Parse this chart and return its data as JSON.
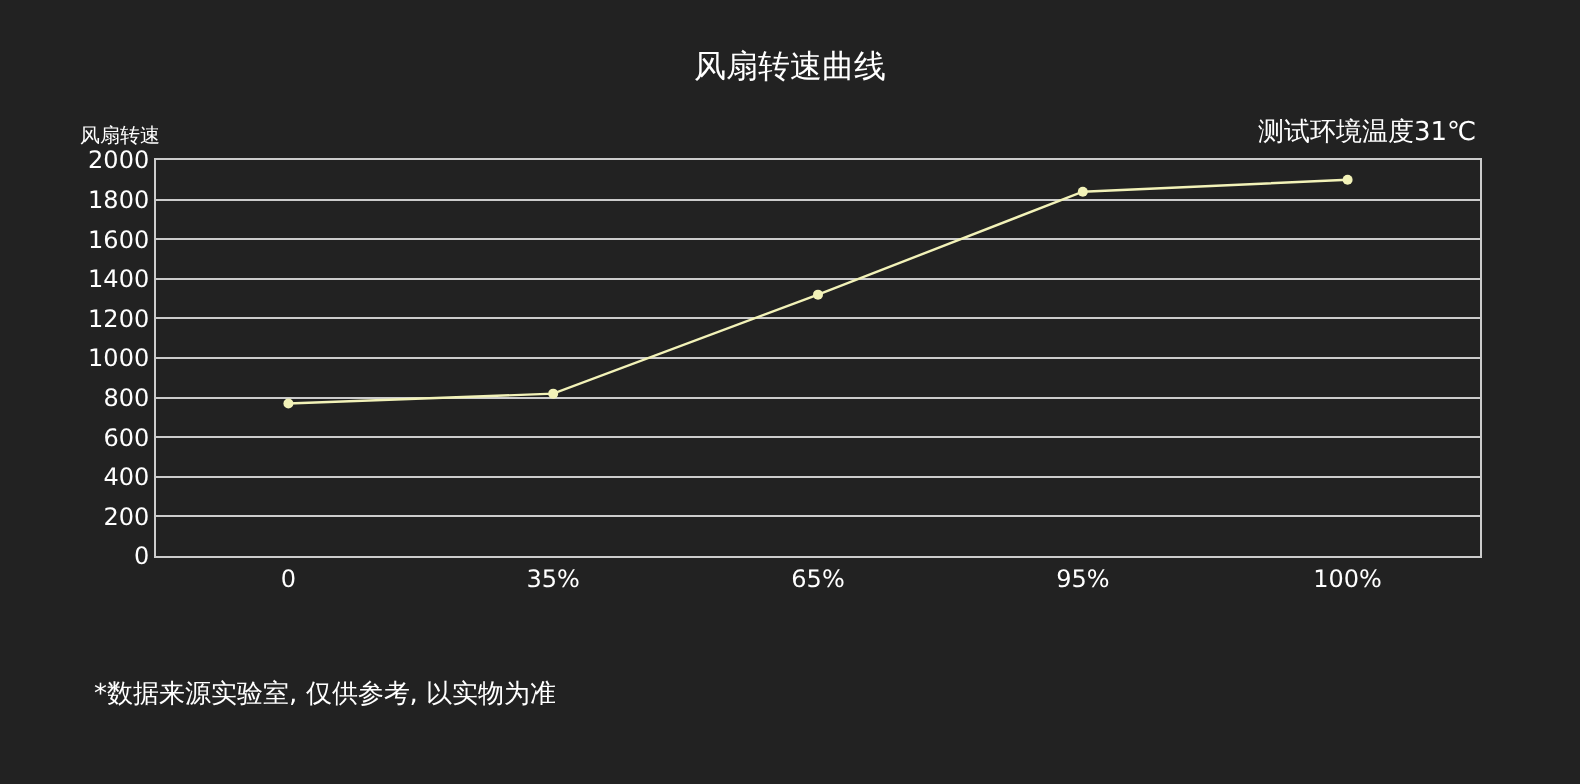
{
  "chart_data": {
    "type": "line",
    "title": "风扇转速曲线",
    "ylabel": "风扇转速",
    "annotations": [
      "测试环境温度31℃",
      "*数据来源实验室, 仅供参考, 以实物为准"
    ],
    "categories": [
      "0",
      "35%",
      "65%",
      "95%",
      "100%"
    ],
    "series": [
      {
        "color": "#f2f2b8",
        "values": [
          770,
          820,
          1320,
          1840,
          1900
        ]
      }
    ],
    "ylim": [
      0,
      2000
    ],
    "yticks": [
      0,
      200,
      400,
      600,
      800,
      1000,
      1200,
      1400,
      1600,
      1800,
      2000
    ],
    "grid": "y",
    "marker": "circle",
    "line_style": "solid"
  }
}
